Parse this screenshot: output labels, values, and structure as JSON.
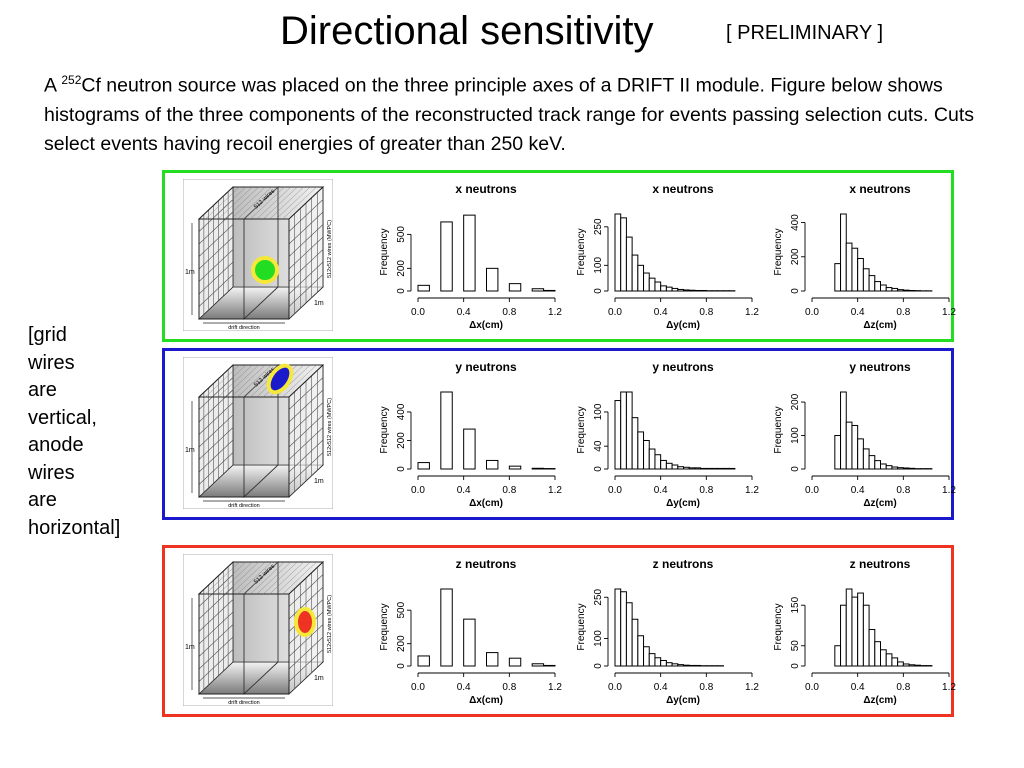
{
  "title": "Directional sensitivity",
  "status": "[ PRELIMINARY ]",
  "intro": {
    "prefix": "A ",
    "isotope_mass": "252",
    "text": "Cf neutron source was placed on the three principle axes of a DRIFT II module. Figure below shows histograms of the three components of the reconstructed track range for events passing selection cuts. Cuts select events having recoil energies of greater than 250 keV."
  },
  "side_note": [
    "[grid",
    "wires",
    "are",
    "vertical,",
    "anode",
    "wires",
    "are",
    "horizontal]"
  ],
  "diagram": {
    "top_label": "512 wires",
    "side_label": "512x512 wires (MWPC)",
    "height_label": "1m",
    "depth_label": "1m",
    "bottom_label": "drift direction"
  },
  "colors": {
    "x": "#22dd22",
    "y": "#1a1acc",
    "z": "#ee3322",
    "ring": "#f5e83a"
  },
  "chart_data": [
    {
      "type": "bar",
      "row": "x",
      "title": "x neutrons",
      "xlabel": "Δx(cm)",
      "ylabel": "Frequency",
      "bin_starts": [
        0,
        0.1,
        0.2,
        0.3,
        0.4,
        0.5,
        0.6,
        0.7,
        0.8,
        0.9,
        1.0,
        1.1
      ],
      "bin_width": 0.1,
      "values": [
        50,
        0,
        610,
        0,
        670,
        0,
        200,
        0,
        65,
        0,
        20,
        5
      ],
      "xlim": [
        0,
        1.2
      ],
      "xticks": [
        "0.0",
        "0.4",
        "0.8",
        "1.2"
      ],
      "xtick_values": [
        0,
        0.4,
        0.8,
        1.2
      ],
      "yticks": [
        0,
        200,
        500
      ],
      "ymax": 680
    },
    {
      "type": "bar",
      "row": "x",
      "title": "x neutrons",
      "xlabel": "Δy(cm)",
      "ylabel": "Frequency",
      "bin_starts": [
        0,
        0.05,
        0.1,
        0.15,
        0.2,
        0.25,
        0.3,
        0.35,
        0.4,
        0.45,
        0.5,
        0.55,
        0.6,
        0.65,
        0.7,
        0.75,
        0.8,
        0.85,
        0.9,
        0.95,
        1.0,
        1.05,
        1.1,
        1.15
      ],
      "bin_width": 0.05,
      "values": [
        300,
        285,
        210,
        140,
        100,
        70,
        50,
        35,
        20,
        15,
        10,
        6,
        4,
        3,
        2,
        2,
        1,
        1,
        1,
        1,
        1,
        0,
        0,
        0
      ],
      "xlim": [
        0,
        1.2
      ],
      "xticks": [
        "0.0",
        "0.4",
        "0.8",
        "1.2"
      ],
      "xtick_values": [
        0,
        0.4,
        0.8,
        1.2
      ],
      "yticks": [
        0,
        100,
        250
      ],
      "ymax": 300
    },
    {
      "type": "bar",
      "row": "x",
      "title": "x neutrons",
      "xlabel": "Δz(cm)",
      "ylabel": "Frequency",
      "bin_starts": [
        0,
        0.05,
        0.1,
        0.15,
        0.2,
        0.25,
        0.3,
        0.35,
        0.4,
        0.45,
        0.5,
        0.55,
        0.6,
        0.65,
        0.7,
        0.75,
        0.8,
        0.85,
        0.9,
        0.95,
        1.0,
        1.05,
        1.1,
        1.15
      ],
      "bin_width": 0.05,
      "values": [
        0,
        0,
        0,
        0,
        160,
        450,
        280,
        250,
        190,
        130,
        90,
        55,
        35,
        20,
        15,
        8,
        5,
        3,
        2,
        1,
        1,
        0,
        0,
        0
      ],
      "xlim": [
        0,
        1.2
      ],
      "xticks": [
        "0.0",
        "0.4",
        "0.8",
        "1.2"
      ],
      "xtick_values": [
        0,
        0.4,
        0.8,
        1.2
      ],
      "yticks": [
        0,
        200,
        400
      ],
      "ymax": 450
    },
    {
      "type": "bar",
      "row": "y",
      "title": "y neutrons",
      "xlabel": "Δx(cm)",
      "ylabel": "Frequency",
      "bin_starts": [
        0,
        0.1,
        0.2,
        0.3,
        0.4,
        0.5,
        0.6,
        0.7,
        0.8,
        0.9,
        1.0,
        1.1
      ],
      "bin_width": 0.1,
      "values": [
        45,
        0,
        540,
        0,
        280,
        0,
        60,
        0,
        20,
        0,
        5,
        3
      ],
      "xlim": [
        0,
        1.2
      ],
      "xticks": [
        "0.0",
        "0.4",
        "0.8",
        "1.2"
      ],
      "xtick_values": [
        0,
        0.4,
        0.8,
        1.2
      ],
      "yticks": [
        0,
        200,
        400
      ],
      "ymax": 540
    },
    {
      "type": "bar",
      "row": "y",
      "title": "y neutrons",
      "xlabel": "Δy(cm)",
      "ylabel": "Frequency",
      "bin_starts": [
        0,
        0.05,
        0.1,
        0.15,
        0.2,
        0.25,
        0.3,
        0.35,
        0.4,
        0.45,
        0.5,
        0.55,
        0.6,
        0.65,
        0.7,
        0.75,
        0.8,
        0.85,
        0.9,
        0.95,
        1.0,
        1.05,
        1.1,
        1.15
      ],
      "bin_width": 0.05,
      "values": [
        120,
        135,
        135,
        90,
        65,
        50,
        35,
        25,
        15,
        10,
        7,
        4,
        3,
        2,
        2,
        1,
        1,
        1,
        1,
        1,
        1,
        0,
        0,
        0
      ],
      "xlim": [
        0,
        1.2
      ],
      "xticks": [
        "0.0",
        "0.4",
        "0.8",
        "1.2"
      ],
      "xtick_values": [
        0,
        0.4,
        0.8,
        1.2
      ],
      "yticks": [
        0,
        40,
        100
      ],
      "ymax": 135
    },
    {
      "type": "bar",
      "row": "y",
      "title": "y neutrons",
      "xlabel": "Δz(cm)",
      "ylabel": "Frequency",
      "bin_starts": [
        0,
        0.05,
        0.1,
        0.15,
        0.2,
        0.25,
        0.3,
        0.35,
        0.4,
        0.45,
        0.5,
        0.55,
        0.6,
        0.65,
        0.7,
        0.75,
        0.8,
        0.85,
        0.9,
        0.95,
        1.0,
        1.05,
        1.1,
        1.15
      ],
      "bin_width": 0.05,
      "values": [
        0,
        0,
        0,
        0,
        100,
        230,
        140,
        130,
        90,
        60,
        40,
        25,
        15,
        10,
        6,
        4,
        3,
        2,
        1,
        1,
        1,
        0,
        0,
        0
      ],
      "xlim": [
        0,
        1.2
      ],
      "xticks": [
        "0.0",
        "0.4",
        "0.8",
        "1.2"
      ],
      "xtick_values": [
        0,
        0.4,
        0.8,
        1.2
      ],
      "yticks": [
        0,
        100,
        200
      ],
      "ymax": 230
    },
    {
      "type": "bar",
      "row": "z",
      "title": "z neutrons",
      "xlabel": "Δx(cm)",
      "ylabel": "Frequency",
      "bin_starts": [
        0,
        0.1,
        0.2,
        0.3,
        0.4,
        0.5,
        0.6,
        0.7,
        0.8,
        0.9,
        1.0,
        1.1
      ],
      "bin_width": 0.1,
      "values": [
        90,
        0,
        690,
        0,
        420,
        0,
        120,
        0,
        70,
        0,
        20,
        5
      ],
      "xlim": [
        0,
        1.2
      ],
      "xticks": [
        "0.0",
        "0.4",
        "0.8",
        "1.2"
      ],
      "xtick_values": [
        0,
        0.4,
        0.8,
        1.2
      ],
      "yticks": [
        0,
        200,
        500
      ],
      "ymax": 690
    },
    {
      "type": "bar",
      "row": "z",
      "title": "z neutrons",
      "xlabel": "Δy(cm)",
      "ylabel": "Frequency",
      "bin_starts": [
        0,
        0.05,
        0.1,
        0.15,
        0.2,
        0.25,
        0.3,
        0.35,
        0.4,
        0.45,
        0.5,
        0.55,
        0.6,
        0.65,
        0.7,
        0.75,
        0.8,
        0.85,
        0.9,
        0.95,
        1.0,
        1.05,
        1.1,
        1.15
      ],
      "bin_width": 0.05,
      "values": [
        280,
        270,
        230,
        170,
        110,
        70,
        45,
        30,
        20,
        12,
        8,
        5,
        3,
        2,
        2,
        1,
        1,
        1,
        1,
        0,
        0,
        0,
        0,
        0
      ],
      "xlim": [
        0,
        1.2
      ],
      "xticks": [
        "0.0",
        "0.4",
        "0.8",
        "1.2"
      ],
      "xtick_values": [
        0,
        0.4,
        0.8,
        1.2
      ],
      "yticks": [
        0,
        100,
        250
      ],
      "ymax": 280
    },
    {
      "type": "bar",
      "row": "z",
      "title": "z neutrons",
      "xlabel": "Δz(cm)",
      "ylabel": "Frequency",
      "bin_starts": [
        0,
        0.05,
        0.1,
        0.15,
        0.2,
        0.25,
        0.3,
        0.35,
        0.4,
        0.45,
        0.5,
        0.55,
        0.6,
        0.65,
        0.7,
        0.75,
        0.8,
        0.85,
        0.9,
        0.95,
        1.0,
        1.05,
        1.1,
        1.15
      ],
      "bin_width": 0.05,
      "values": [
        0,
        0,
        0,
        0,
        50,
        150,
        190,
        170,
        180,
        150,
        90,
        60,
        40,
        30,
        20,
        10,
        5,
        3,
        2,
        1,
        1,
        0,
        0,
        0
      ],
      "xlim": [
        0,
        1.2
      ],
      "xticks": [
        "0.0",
        "0.4",
        "0.8",
        "1.2"
      ],
      "xtick_values": [
        0,
        0.4,
        0.8,
        1.2
      ],
      "yticks": [
        0,
        50,
        150
      ],
      "ymax": 190
    }
  ]
}
